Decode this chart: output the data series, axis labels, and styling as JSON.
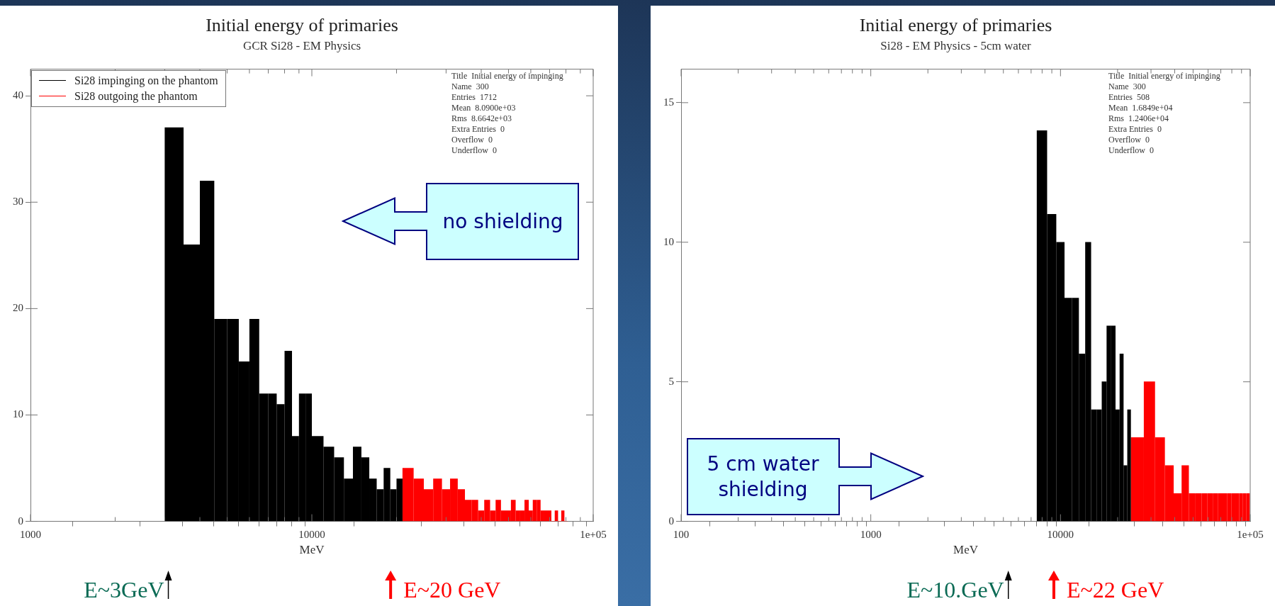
{
  "chart_data": [
    {
      "type": "histogram",
      "title": "Initial energy of primaries",
      "subtitle": "GCR Si28 - EM Physics",
      "xlabel": "MeV",
      "log": "x",
      "xlim": [
        1000,
        100000
      ],
      "xticks": [
        1000,
        {
          "value": 2000,
          "label": null
        },
        {
          "value": 3000,
          "label": null
        },
        {
          "value": 4000,
          "label": null
        },
        {
          "value": 5000,
          "label": null
        },
        {
          "value": 6000,
          "label": null
        },
        {
          "value": 7000,
          "label": null
        },
        {
          "value": 8000,
          "label": null
        },
        {
          "value": 9000,
          "label": null
        },
        10000,
        {
          "value": 20000,
          "label": null
        },
        {
          "value": 30000,
          "label": null
        },
        {
          "value": 40000,
          "label": null
        },
        {
          "value": 50000,
          "label": null
        },
        {
          "value": 60000,
          "label": null
        },
        {
          "value": 70000,
          "label": null
        },
        {
          "value": 80000,
          "label": null
        },
        {
          "value": 90000,
          "label": null
        },
        {
          "value": 100000,
          "label": "1e+05"
        }
      ],
      "ylim": [
        0,
        42.5
      ],
      "yticks": [
        0,
        10,
        20,
        30,
        40
      ],
      "legend": "top left",
      "bins": [
        3000,
        3500,
        4000,
        4500,
        5000,
        5500,
        6000,
        6500,
        7000,
        7500,
        8000,
        8500,
        9000,
        9500,
        10000,
        11000,
        12000,
        13000,
        14000,
        15000,
        16000,
        17000,
        18000,
        19000,
        20000,
        21000,
        23000,
        25000,
        27000,
        29000,
        31000,
        33000,
        35000,
        37000,
        39000,
        41000,
        43000,
        45000,
        47000,
        49000,
        51000,
        53000,
        55000,
        57000,
        59000,
        61000,
        63000,
        65000,
        67000,
        69000,
        71000,
        73000,
        75000,
        77000,
        79000,
        81000
      ],
      "series": [
        {
          "name": "Si28 impinging on the phantom",
          "color": "#000000",
          "values": [
            37,
            26,
            32,
            19,
            19,
            15,
            19,
            12,
            12,
            11,
            16,
            8,
            12,
            12,
            8,
            7,
            6,
            4,
            7,
            6,
            4,
            3,
            5,
            3,
            4,
            null,
            null,
            null,
            null,
            null,
            null,
            null,
            null,
            null,
            null,
            null,
            null,
            null,
            null,
            null,
            null,
            null,
            null,
            null,
            null,
            null,
            null,
            null,
            null,
            null,
            null,
            null,
            null,
            null,
            null
          ]
        },
        {
          "name": "Si28 outgoing the phantom",
          "color": "#ff0000",
          "values": [
            null,
            null,
            null,
            null,
            null,
            null,
            null,
            null,
            null,
            null,
            null,
            null,
            null,
            null,
            null,
            null,
            null,
            null,
            null,
            null,
            null,
            null,
            null,
            null,
            null,
            5,
            4,
            3,
            4,
            3,
            4,
            3,
            2,
            2,
            1,
            2,
            1,
            2,
            1,
            1,
            2,
            1,
            1,
            2,
            1,
            2,
            2,
            1,
            1,
            1,
            0,
            1,
            0,
            1,
            0
          ]
        }
      ],
      "annotations": [
        "Title  Initial energy of impinging",
        "Name  300",
        "Entries  1712",
        "Mean  8.0900e+03",
        "Rms  8.6642e+03",
        "Extra Entries  0",
        "Overflow  0",
        "Underflow  0",
        "E~3GeV",
        "E~20 GeV",
        "no shielding"
      ]
    },
    {
      "type": "histogram",
      "title": "Initial energy of primaries",
      "subtitle": "Si28 - EM Physics - 5cm water",
      "xlabel": "MeV",
      "log": "x",
      "xlim": [
        100,
        100000
      ],
      "xticks": [
        100,
        {
          "value": 200,
          "label": null
        },
        {
          "value": 300,
          "label": null
        },
        {
          "value": 400,
          "label": null
        },
        {
          "value": 500,
          "label": null
        },
        {
          "value": 600,
          "label": null
        },
        {
          "value": 700,
          "label": null
        },
        {
          "value": 800,
          "label": null
        },
        {
          "value": 900,
          "label": null
        },
        1000,
        {
          "value": 2000,
          "label": null
        },
        {
          "value": 3000,
          "label": null
        },
        {
          "value": 4000,
          "label": null
        },
        {
          "value": 5000,
          "label": null
        },
        {
          "value": 6000,
          "label": null
        },
        {
          "value": 7000,
          "label": null
        },
        {
          "value": 8000,
          "label": null
        },
        {
          "value": 9000,
          "label": null
        },
        10000,
        {
          "value": 20000,
          "label": null
        },
        {
          "value": 30000,
          "label": null
        },
        {
          "value": 40000,
          "label": null
        },
        {
          "value": 50000,
          "label": null
        },
        {
          "value": 60000,
          "label": null
        },
        {
          "value": 70000,
          "label": null
        },
        {
          "value": 80000,
          "label": null
        },
        {
          "value": 90000,
          "label": null
        },
        {
          "value": 100000,
          "label": "1e+05"
        }
      ],
      "ylim": [
        0,
        16.2
      ],
      "yticks": [
        0,
        5,
        10,
        15
      ],
      "bins": [
        7500,
        8500,
        9500,
        10500,
        11500,
        12500,
        13500,
        14500,
        15500,
        16500,
        17500,
        18500,
        19500,
        20500,
        21500,
        22500,
        23500,
        27500,
        31500,
        35500,
        39500,
        43500,
        47500,
        51500,
        55500,
        59500,
        63500,
        67500,
        71500,
        75500,
        79500,
        83500,
        87500,
        91500,
        95500,
        99500
      ],
      "series": [
        {
          "color": "#000000",
          "values": [
            14,
            11,
            10,
            8,
            8,
            6,
            10,
            4,
            4,
            5,
            7,
            7,
            4,
            6,
            2,
            4,
            null,
            null,
            null,
            null,
            null,
            null,
            null,
            null,
            null,
            null,
            null,
            null,
            null,
            null,
            null,
            null,
            null,
            null,
            null
          ]
        },
        {
          "color": "#ff0000",
          "values": [
            null,
            null,
            null,
            null,
            null,
            null,
            null,
            null,
            null,
            null,
            null,
            null,
            null,
            null,
            null,
            null,
            3,
            5,
            3,
            2,
            1,
            2,
            1,
            1,
            1,
            1,
            1,
            1,
            1,
            1,
            1,
            1,
            1,
            1,
            1
          ]
        }
      ],
      "annotations": [
        "Title  Initial energy of impinging",
        "Name  300",
        "Entries  508",
        "Mean  1.6849e+04",
        "Rms  1.2406e+04",
        "Extra Entries  0",
        "Overflow  0",
        "Underflow  0",
        "E~10.GeV",
        "E~22 GeV",
        "5 cm water shielding"
      ]
    }
  ]
}
